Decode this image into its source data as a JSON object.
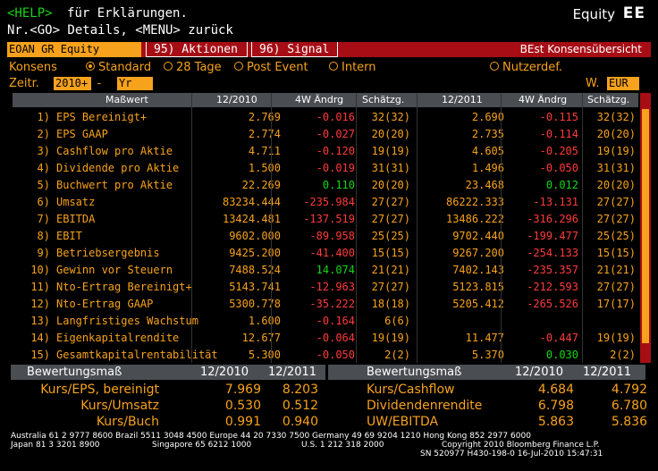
{
  "header": {
    "help_key": "<HELP>",
    "help_text": "für Erklärungen.",
    "nav_text": "Nr.<GO> Details, <MENU> zurück",
    "equity_label": "Equity",
    "function_code": "EE"
  },
  "tabs": {
    "ticker": "EOAN GR Equity",
    "t1": "95) Aktionen",
    "t2": "96) Signal",
    "title": "BEst Konsensübersicht"
  },
  "options": {
    "label": "Konsens",
    "opt1": "Standard",
    "opt2": "28 Tage",
    "opt3": "Post Event",
    "opt4": "Intern",
    "opt5": "Nutzerdef.",
    "zeitr_label": "Zeitr.",
    "zeitr_value": "2010+",
    "zeitr_dash": "-",
    "zeitr_unit": "Yr",
    "w_label": "W.",
    "w_value": "EUR"
  },
  "table": {
    "headers": [
      "Maßwert",
      "12/2010",
      "4W Ändrg",
      "Schätzg.",
      "12/2011",
      "4W Ändrg",
      "Schätzg."
    ],
    "rows": [
      {
        "n": "1)",
        "name": "EPS Bereinigt+",
        "v1": "2.769",
        "c1": "-0.016",
        "s1": "32(32)",
        "v2": "2.690",
        "c2": "-0.115",
        "s2": "32(32)"
      },
      {
        "n": "2)",
        "name": "EPS GAAP",
        "v1": "2.774",
        "c1": "-0.027",
        "s1": "20(20)",
        "v2": "2.735",
        "c2": "-0.114",
        "s2": "20(20)"
      },
      {
        "n": "3)",
        "name": "Cashflow pro Aktie",
        "v1": "4.711",
        "c1": "-0.120",
        "s1": "19(19)",
        "v2": "4.605",
        "c2": "-0.205",
        "s2": "19(19)"
      },
      {
        "n": "4)",
        "name": "Dividende pro Aktie",
        "v1": "1.500",
        "c1": "-0.019",
        "s1": "31(31)",
        "v2": "1.496",
        "c2": "-0.050",
        "s2": "31(31)"
      },
      {
        "n": "5)",
        "name": "Buchwert pro Aktie",
        "v1": "22.269",
        "c1": "0.110",
        "s1": "20(20)",
        "v2": "23.468",
        "c2": "0.012",
        "s2": "20(20)"
      },
      {
        "n": "6)",
        "name": "Umsatz",
        "v1": "83234.444",
        "c1": "-235.984",
        "s1": "27(27)",
        "v2": "86222.333",
        "c2": "-13.131",
        "s2": "27(27)"
      },
      {
        "n": "7)",
        "name": "EBITDA",
        "v1": "13424.481",
        "c1": "-137.519",
        "s1": "27(27)",
        "v2": "13486.222",
        "c2": "-316.296",
        "s2": "27(27)"
      },
      {
        "n": "8)",
        "name": "EBIT",
        "v1": "9602.000",
        "c1": "-89.958",
        "s1": "25(25)",
        "v2": "9702.440",
        "c2": "-199.477",
        "s2": "25(25)"
      },
      {
        "n": "9)",
        "name": "Betriebsergebnis",
        "v1": "9425.200",
        "c1": "-41.400",
        "s1": "15(15)",
        "v2": "9267.200",
        "c2": "-254.133",
        "s2": "15(15)"
      },
      {
        "n": "10)",
        "name": "Gewinn vor Steuern",
        "v1": "7488.524",
        "c1": "14.074",
        "s1": "21(21)",
        "v2": "7402.143",
        "c2": "-235.357",
        "s2": "21(21)"
      },
      {
        "n": "11)",
        "name": "Nto-Ertrag Bereinigt+",
        "v1": "5143.741",
        "c1": "-12.963",
        "s1": "27(27)",
        "v2": "5123.815",
        "c2": "-212.593",
        "s2": "27(27)"
      },
      {
        "n": "12)",
        "name": "Nto-Ertrag GAAP",
        "v1": "5300.778",
        "c1": "-35.222",
        "s1": "18(18)",
        "v2": "5205.412",
        "c2": "-265.526",
        "s2": "17(17)"
      },
      {
        "n": "13)",
        "name": "Langfristiges Wachstum",
        "v1": "1.600",
        "c1": "-0.164",
        "s1": "6(6)",
        "v2": "",
        "c2": "",
        "s2": ""
      },
      {
        "n": "14)",
        "name": "Eigenkapitalrendite",
        "v1": "12.677",
        "c1": "-0.064",
        "s1": "19(19)",
        "v2": "11.477",
        "c2": "-0.447",
        "s2": "19(19)"
      },
      {
        "n": "15)",
        "name": "Gesamtkapitalrentabilität",
        "v1": "5.300",
        "c1": "-0.050",
        "s1": "2(2)",
        "v2": "5.370",
        "c2": "0.030",
        "s2": "2(2)"
      }
    ]
  },
  "valuation": {
    "headers": [
      "Bewertungsmaß",
      "12/2010",
      "12/2011"
    ],
    "left": [
      {
        "name": "Kurs/EPS, bereinigt",
        "v1": "7.969",
        "v2": "8.203"
      },
      {
        "name": "Kurs/Umsatz",
        "v1": "0.530",
        "v2": "0.512"
      },
      {
        "name": "Kurs/Buch",
        "v1": "0.991",
        "v2": "0.940"
      }
    ],
    "right": [
      {
        "name": "Kurs/Cashflow",
        "v1": "4.684",
        "v2": "4.792"
      },
      {
        "name": "Dividendenrendite",
        "v1": "6.798",
        "v2": "6.780"
      },
      {
        "name": "UW/EBITDA",
        "v1": "5.863",
        "v2": "5.836"
      }
    ]
  },
  "footer": {
    "line1": "Australia 61 2 9777 8600 Brazil 5511 3048 4500 Europe 44 20 7330 7500 Germany 49 69 9204 1210 Hong Kong 852 2977 6000",
    "line2a": "Japan 81 3 3201 8900",
    "line2b": "Singapore 65 6212 1000",
    "line2c": "U.S. 1 212 318 2000",
    "line2d": "Copyright 2010 Bloomberg Finance L.P.",
    "line3": "SN 520977 H430-198-0 16-Jul-2010 15:47:31"
  },
  "colors": {
    "accent": "#f7a21c",
    "bar": "#a70d15",
    "header_bg": "#4a4d52",
    "positive": "#16d716",
    "negative": "#ff3a3a"
  }
}
